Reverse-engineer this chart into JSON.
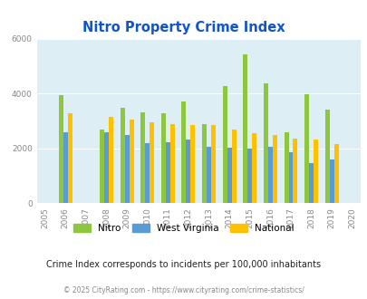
{
  "title": "Nitro Property Crime Index",
  "years": [
    2005,
    2006,
    2007,
    2008,
    2009,
    2010,
    2011,
    2012,
    2013,
    2014,
    2015,
    2016,
    2017,
    2018,
    2019,
    2020
  ],
  "nitro": [
    null,
    3950,
    null,
    2700,
    3480,
    3320,
    3280,
    3730,
    2900,
    4280,
    5420,
    4380,
    2580,
    3980,
    3420,
    null
  ],
  "west_virginia": [
    null,
    2600,
    null,
    2580,
    2480,
    2200,
    2230,
    2340,
    2060,
    2040,
    2010,
    2050,
    1880,
    1470,
    1590,
    null
  ],
  "national": [
    null,
    3280,
    null,
    3160,
    3040,
    2940,
    2900,
    2870,
    2840,
    2700,
    2560,
    2480,
    2370,
    2340,
    2150,
    null
  ],
  "nitro_color": "#8dc63f",
  "wv_color": "#5b9bd5",
  "national_color": "#ffc000",
  "bg_color": "#ddeef5",
  "title_color": "#1155cc",
  "ylabel_max": 6000,
  "yticks": [
    0,
    2000,
    4000,
    6000
  ],
  "subtitle": "Crime Index corresponds to incidents per 100,000 inhabitants",
  "footer": "© 2025 CityRating.com - https://www.cityrating.com/crime-statistics/",
  "subtitle_color": "#222222",
  "footer_color": "#888888"
}
